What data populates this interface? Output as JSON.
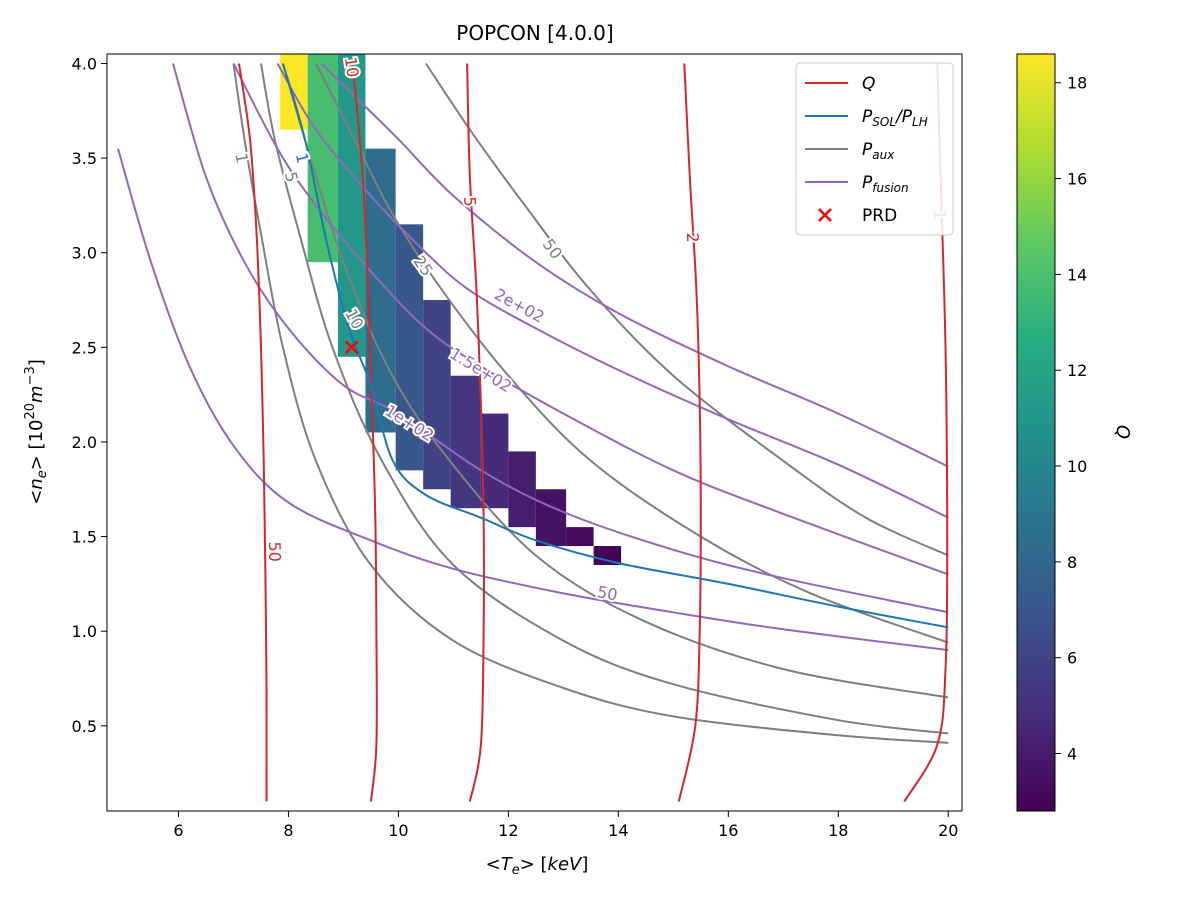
{
  "chart_data": {
    "type": "contour",
    "title": "POPCON [4.0.0]",
    "xlabel": "<T_e> [keV]",
    "ylabel": "<n_e> [10^20 m^-3]",
    "colorbar_label": "Q",
    "xlim": [
      4.7,
      20.25
    ],
    "ylim": [
      0.05,
      4.05
    ],
    "clim": [
      2.8,
      18.6
    ],
    "xticks": [
      6,
      8,
      10,
      12,
      14,
      16,
      18,
      20
    ],
    "yticks": [
      0.5,
      1.0,
      1.5,
      2.0,
      2.5,
      3.0,
      3.5,
      4.0
    ],
    "cbar_ticks": [
      4,
      6,
      8,
      10,
      12,
      14,
      16,
      18
    ],
    "legend_position": "top-right",
    "colors": {
      "Q": "#d62728",
      "P_SOL_P_LH": "#1f77b4",
      "P_aux": "#7f7f7f",
      "P_fusion": "#9467bd",
      "PRD": "#ff0000"
    },
    "legend": [
      {
        "key": "Q",
        "label": "Q"
      },
      {
        "key": "P_SOL_P_LH",
        "label": "P_SOL/P_LH"
      },
      {
        "key": "P_aux",
        "label": "P_aux"
      },
      {
        "key": "P_fusion",
        "label": "P_fusion"
      },
      {
        "key": "PRD",
        "label": "PRD"
      }
    ],
    "heatmap_cells": [
      {
        "x0": 7.85,
        "x1": 8.35,
        "y0": 3.65,
        "y1": 4.05,
        "q": 18.6
      },
      {
        "x0": 8.35,
        "x1": 8.9,
        "y0": 2.95,
        "y1": 4.05,
        "q": 13.8
      },
      {
        "x0": 8.9,
        "x1": 9.4,
        "y0": 2.45,
        "y1": 4.05,
        "q": 11.2
      },
      {
        "x0": 9.4,
        "x1": 9.95,
        "y0": 2.05,
        "y1": 3.55,
        "q": 8.4
      },
      {
        "x0": 9.95,
        "x1": 10.45,
        "y0": 1.85,
        "y1": 3.15,
        "q": 7.1
      },
      {
        "x0": 10.45,
        "x1": 10.95,
        "y0": 1.75,
        "y1": 2.75,
        "q": 6.0
      },
      {
        "x0": 10.95,
        "x1": 11.5,
        "y0": 1.65,
        "y1": 2.35,
        "q": 5.3
      },
      {
        "x0": 11.5,
        "x1": 12.0,
        "y0": 1.65,
        "y1": 2.15,
        "q": 4.7
      },
      {
        "x0": 12.0,
        "x1": 12.5,
        "y0": 1.55,
        "y1": 1.95,
        "q": 4.1
      },
      {
        "x0": 12.5,
        "x1": 13.05,
        "y0": 1.45,
        "y1": 1.75,
        "q": 3.6
      },
      {
        "x0": 13.05,
        "x1": 13.55,
        "y0": 1.45,
        "y1": 1.55,
        "q": 3.2
      },
      {
        "x0": 13.55,
        "x1": 14.05,
        "y0": 1.35,
        "y1": 1.45,
        "q": 2.9
      }
    ],
    "series": [
      {
        "name": "Q",
        "group": "Q",
        "label": "50",
        "label_at": [
          7.75,
          1.42
        ],
        "points": [
          [
            7.6,
            0.1
          ],
          [
            7.6,
            0.7
          ],
          [
            7.58,
            1.3
          ],
          [
            7.55,
            1.9
          ],
          [
            7.5,
            2.5
          ],
          [
            7.42,
            3.1
          ],
          [
            7.3,
            3.6
          ],
          [
            7.1,
            4.0
          ]
        ]
      },
      {
        "name": "Q",
        "group": "Q",
        "label": "10",
        "label_at": [
          9.15,
          3.98
        ],
        "points": [
          [
            9.5,
            0.1
          ],
          [
            9.6,
            0.4
          ],
          [
            9.6,
            1.0
          ],
          [
            9.58,
            1.6
          ],
          [
            9.52,
            2.2
          ],
          [
            9.45,
            2.8
          ],
          [
            9.35,
            3.4
          ],
          [
            9.2,
            3.9
          ],
          [
            9.15,
            4.0
          ]
        ]
      },
      {
        "name": "Q",
        "group": "Q",
        "label": "5",
        "label_at": [
          11.3,
          3.27
        ],
        "points": [
          [
            11.3,
            0.1
          ],
          [
            11.5,
            0.4
          ],
          [
            11.55,
            1.0
          ],
          [
            11.55,
            1.6
          ],
          [
            11.5,
            2.2
          ],
          [
            11.42,
            2.8
          ],
          [
            11.3,
            3.4
          ],
          [
            11.25,
            4.0
          ]
        ]
      },
      {
        "name": "Q",
        "group": "Q",
        "label": "2",
        "label_at": [
          15.35,
          3.08
        ],
        "points": [
          [
            15.1,
            0.1
          ],
          [
            15.4,
            0.5
          ],
          [
            15.48,
            1.0
          ],
          [
            15.5,
            1.6
          ],
          [
            15.48,
            2.2
          ],
          [
            15.42,
            2.8
          ],
          [
            15.3,
            3.4
          ],
          [
            15.2,
            4.0
          ]
        ]
      },
      {
        "name": "Q",
        "group": "Q",
        "label": "1",
        "label_at": [
          19.85,
          3.2
        ],
        "points": [
          [
            19.2,
            0.1
          ],
          [
            19.8,
            0.4
          ],
          [
            19.95,
            0.8
          ],
          [
            19.98,
            1.5
          ],
          [
            19.95,
            2.5
          ],
          [
            19.85,
            3.5
          ],
          [
            19.8,
            4.0
          ]
        ]
      },
      {
        "name": "P_SOL/P_LH",
        "group": "P_SOL_P_LH",
        "label": "1",
        "label_at": [
          8.25,
          3.5
        ],
        "points": [
          [
            7.9,
            4.0
          ],
          [
            8.3,
            3.6
          ],
          [
            8.7,
            3.05
          ],
          [
            9.1,
            2.6
          ],
          [
            9.5,
            2.3
          ],
          [
            9.9,
            1.9
          ],
          [
            10.5,
            1.72
          ],
          [
            11.5,
            1.6
          ],
          [
            12.5,
            1.48
          ],
          [
            14,
            1.36
          ],
          [
            16,
            1.25
          ],
          [
            18,
            1.13
          ],
          [
            20,
            1.02
          ]
        ]
      },
      {
        "name": "P_aux",
        "group": "P_aux",
        "label": "1",
        "label_at": [
          7.15,
          3.5
        ],
        "points": [
          [
            7.0,
            4.0
          ],
          [
            7.2,
            3.6
          ],
          [
            7.5,
            3.1
          ],
          [
            7.9,
            2.5
          ],
          [
            8.5,
            1.9
          ],
          [
            9.5,
            1.35
          ],
          [
            11,
            0.95
          ],
          [
            13,
            0.7
          ],
          [
            15,
            0.55
          ],
          [
            18,
            0.45
          ],
          [
            20,
            0.41
          ]
        ]
      },
      {
        "name": "P_aux",
        "group": "P_aux",
        "label": "5",
        "label_at": [
          8.05,
          3.4
        ],
        "points": [
          [
            7.5,
            4.0
          ],
          [
            7.75,
            3.6
          ],
          [
            8.2,
            3.1
          ],
          [
            8.8,
            2.5
          ],
          [
            9.7,
            1.9
          ],
          [
            11,
            1.35
          ],
          [
            13,
            0.95
          ],
          [
            15,
            0.72
          ],
          [
            18,
            0.53
          ],
          [
            20,
            0.46
          ]
        ]
      },
      {
        "name": "P_aux",
        "group": "P_aux",
        "label": "10",
        "label_at": [
          9.2,
          2.65
        ],
        "points": [
          [
            7.9,
            4.0
          ],
          [
            8.4,
            3.5
          ],
          [
            9.0,
            2.95
          ],
          [
            9.8,
            2.4
          ],
          [
            10.8,
            1.95
          ],
          [
            12.5,
            1.4
          ],
          [
            14.5,
            1.05
          ],
          [
            17,
            0.8
          ],
          [
            20,
            0.65
          ]
        ]
      },
      {
        "name": "P_aux",
        "group": "P_aux",
        "label": "25",
        "label_at": [
          10.45,
          2.93
        ],
        "points": [
          [
            8.5,
            4.0
          ],
          [
            9.2,
            3.6
          ],
          [
            9.9,
            3.2
          ],
          [
            10.8,
            2.8
          ],
          [
            12,
            2.35
          ],
          [
            13.5,
            1.9
          ],
          [
            15.5,
            1.5
          ],
          [
            17.5,
            1.2
          ],
          [
            20,
            0.94
          ]
        ]
      },
      {
        "name": "P_aux",
        "group": "P_aux",
        "label": "50",
        "label_at": [
          12.8,
          3.02
        ],
        "points": [
          [
            10.5,
            4.0
          ],
          [
            11.3,
            3.65
          ],
          [
            12.3,
            3.25
          ],
          [
            13.5,
            2.8
          ],
          [
            15,
            2.35
          ],
          [
            17,
            1.9
          ],
          [
            18.5,
            1.6
          ],
          [
            20,
            1.4
          ]
        ]
      },
      {
        "name": "P_fusion",
        "group": "P_fusion",
        "label": "50",
        "label_at": [
          13.8,
          1.2
        ],
        "points": [
          [
            4.9,
            3.55
          ],
          [
            5.5,
            2.95
          ],
          [
            6.2,
            2.4
          ],
          [
            7,
            1.98
          ],
          [
            8,
            1.68
          ],
          [
            9.5,
            1.48
          ],
          [
            11,
            1.33
          ],
          [
            13,
            1.2
          ],
          [
            15,
            1.1
          ],
          [
            17,
            1.01
          ],
          [
            20,
            0.9
          ]
        ]
      },
      {
        "name": "P_fusion",
        "group": "P_fusion",
        "label": "1e+02",
        "label_at": [
          10.2,
          2.1
        ],
        "points": [
          [
            5.9,
            4.0
          ],
          [
            6.5,
            3.4
          ],
          [
            7.2,
            2.95
          ],
          [
            8,
            2.6
          ],
          [
            9,
            2.3
          ],
          [
            10,
            2.15
          ],
          [
            11.5,
            1.85
          ],
          [
            13,
            1.63
          ],
          [
            15,
            1.43
          ],
          [
            17,
            1.28
          ],
          [
            20,
            1.1
          ]
        ]
      },
      {
        "name": "P_fusion",
        "group": "P_fusion",
        "label": "1.5e+02",
        "label_at": [
          11.5,
          2.38
        ],
        "points": [
          [
            7.0,
            4.0
          ],
          [
            7.8,
            3.55
          ],
          [
            8.5,
            3.25
          ],
          [
            9.5,
            2.9
          ],
          [
            10.5,
            2.6
          ],
          [
            11.5,
            2.4
          ],
          [
            13,
            2.15
          ],
          [
            15,
            1.85
          ],
          [
            17,
            1.62
          ],
          [
            20,
            1.3
          ]
        ]
      },
      {
        "name": "P_fusion",
        "group": "P_fusion",
        "label": "2e+02",
        "label_at": [
          12.2,
          2.72
        ],
        "points": [
          [
            7.8,
            4.0
          ],
          [
            8.5,
            3.65
          ],
          [
            9.5,
            3.3
          ],
          [
            10.5,
            3.0
          ],
          [
            11.3,
            2.8
          ],
          [
            12.5,
            2.6
          ],
          [
            14,
            2.38
          ],
          [
            16,
            2.12
          ],
          [
            18,
            1.88
          ],
          [
            20,
            1.6
          ]
        ]
      },
      {
        "name": "P_fusion",
        "group": "P_fusion",
        "label": "",
        "label_at": null,
        "points": [
          [
            8.6,
            4.0
          ],
          [
            9.3,
            3.8
          ],
          [
            10,
            3.6
          ],
          [
            11,
            3.3
          ],
          [
            12.5,
            2.95
          ],
          [
            14,
            2.68
          ],
          [
            16,
            2.4
          ],
          [
            18,
            2.15
          ],
          [
            20,
            1.87
          ]
        ]
      }
    ],
    "marker": {
      "name": "PRD",
      "x": 9.15,
      "y": 2.5
    }
  }
}
